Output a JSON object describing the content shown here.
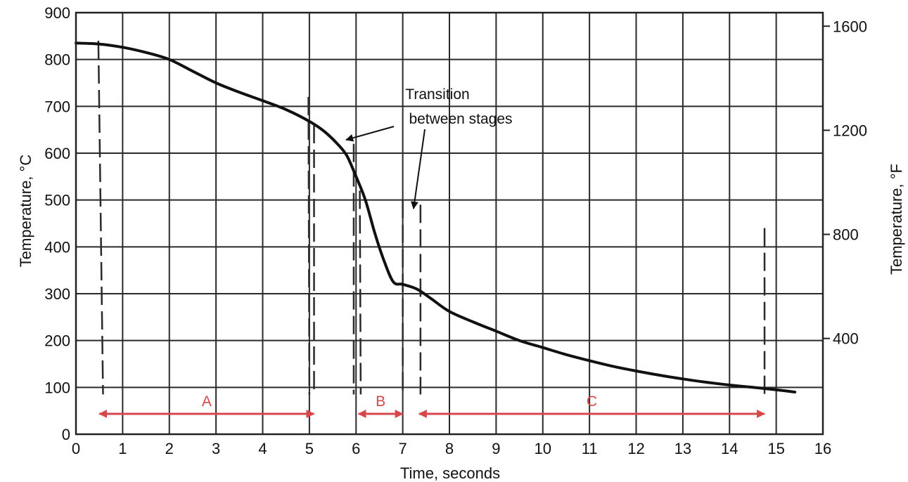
{
  "chart_data": {
    "type": "line",
    "xlabel": "Time, seconds",
    "ylabel": "Temperature, °C",
    "ylabel_right": "Temperature, °F",
    "xlim": [
      0,
      16
    ],
    "ylim": [
      0,
      900
    ],
    "ylim_right_f": [
      32,
      1652
    ],
    "grid": true,
    "x_ticks": [
      "0",
      "1",
      "2",
      "3",
      "4",
      "5",
      "6",
      "7",
      "8",
      "9",
      "10",
      "11",
      "12",
      "13",
      "14",
      "15",
      "16"
    ],
    "y_ticks": [
      "0",
      "100",
      "200",
      "300",
      "400",
      "500",
      "600",
      "700",
      "800",
      "900"
    ],
    "y_ticks_right": [
      "400",
      "800",
      "1200",
      "1600"
    ],
    "series": [
      {
        "x": [
          0,
          0.5,
          1,
          1.5,
          2,
          2.5,
          3,
          3.5,
          4,
          4.5,
          5,
          5.3,
          5.6,
          5.8,
          6,
          6.2,
          6.4,
          6.6,
          6.8,
          7,
          7.3,
          7.6,
          8,
          8.5,
          9,
          9.5,
          10,
          10.5,
          11,
          11.5,
          12,
          12.5,
          13,
          13.5,
          14,
          14.5,
          15,
          15.4
        ],
        "y": [
          835,
          833,
          826,
          815,
          800,
          775,
          750,
          730,
          712,
          693,
          668,
          648,
          620,
          595,
          550,
          500,
          430,
          370,
          325,
          320,
          310,
          290,
          262,
          240,
          220,
          200,
          185,
          170,
          157,
          145,
          135,
          126,
          118,
          111,
          105,
          100,
          95,
          90
        ]
      }
    ],
    "dashed_markers_x": [
      0.45,
      5.05,
      6.05,
      7.05,
      14.75
    ],
    "stages": [
      {
        "label": "A",
        "from": 0.5,
        "to": 5.1
      },
      {
        "label": "B",
        "from": 6.05,
        "to": 7.0
      },
      {
        "label": "C",
        "from": 7.35,
        "to": 14.75
      }
    ],
    "annotations": [
      {
        "lines": [
          "Transition",
          "between stages"
        ]
      }
    ]
  }
}
